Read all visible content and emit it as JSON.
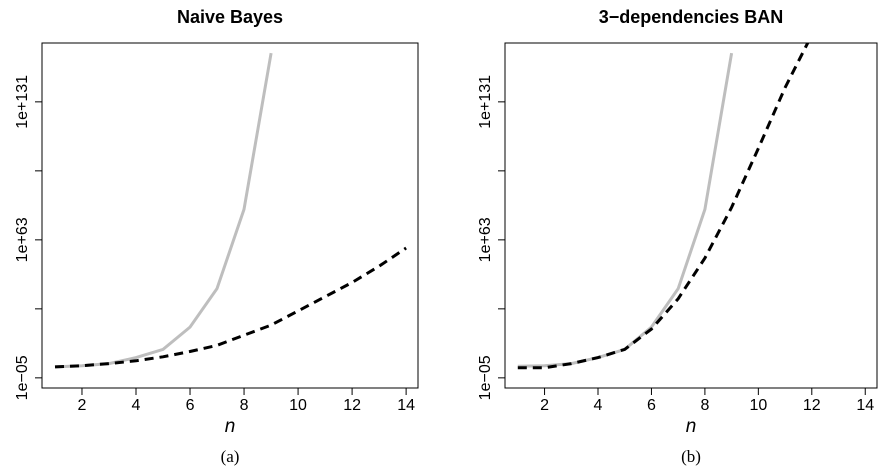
{
  "chart_data": [
    {
      "type": "line",
      "title": "Naive Bayes",
      "xlabel": "n",
      "caption": "(a)",
      "x": [
        1,
        2,
        3,
        4,
        5,
        6,
        7,
        8,
        9,
        10,
        11,
        12,
        13,
        14
      ],
      "series": [
        {
          "color": "#bebebe",
          "style": "solid",
          "values": [
            2.5,
            10,
            100,
            100000.0,
            1000000000.0,
            1e+20,
            1e+39,
            1e+78,
            1e+155,
            null,
            null,
            null,
            null,
            null
          ]
        },
        {
          "color": "#000000",
          "style": "dashed",
          "values": [
            2.5,
            10,
            100,
            2500.0,
            250000.0,
            100000000.0,
            100000000000.0,
            1e+16,
            1e+21,
            1e+28,
            1e+35,
            1e+42,
            1e+50,
            1e+59
          ]
        }
      ],
      "xlim": [
        0.52,
        14.44
      ],
      "xticks": [
        2,
        4,
        6,
        8,
        10,
        12,
        14
      ],
      "ylim": [
        1e-10,
        1e+160
      ],
      "log_y": true,
      "yticks": [
        {
          "value": 1e-05,
          "label": "1e−05"
        },
        {
          "value": 1e+63,
          "label": "1e+63"
        },
        {
          "value": 1e+131,
          "label": "1e+131"
        }
      ],
      "yminorticks": [
        1e+29,
        1e+97
      ]
    },
    {
      "type": "line",
      "title": "3−dependencies BAN",
      "xlabel": "n",
      "caption": "(b)",
      "x": [
        1,
        2,
        3,
        4,
        5,
        6,
        7,
        8,
        9,
        10,
        11,
        12,
        13,
        14
      ],
      "series": [
        {
          "color": "#bebebe",
          "style": "solid",
          "values": [
            5,
            10,
            100,
            100000.0,
            1000000000.0,
            1e+20,
            1e+39,
            1e+78,
            1e+155,
            null,
            null,
            null,
            null,
            null
          ]
        },
        {
          "color": "#000000",
          "style": "dashed",
          "values": [
            1,
            1,
            100,
            100000.0,
            1000000000.0,
            1e+19,
            1e+34,
            1e+54,
            1e+79,
            1e+108,
            1e+138,
            1e+164,
            null,
            null
          ]
        }
      ],
      "xlim": [
        0.52,
        14.44
      ],
      "xticks": [
        2,
        4,
        6,
        8,
        10,
        12,
        14
      ],
      "ylim": [
        1e-10,
        1e+160
      ],
      "log_y": true,
      "yticks": [
        {
          "value": 1e-05,
          "label": "1e−05"
        },
        {
          "value": 1e+63,
          "label": "1e+63"
        },
        {
          "value": 1e+131,
          "label": "1e+131"
        }
      ],
      "yminorticks": [
        1e+29,
        1e+97
      ]
    }
  ]
}
